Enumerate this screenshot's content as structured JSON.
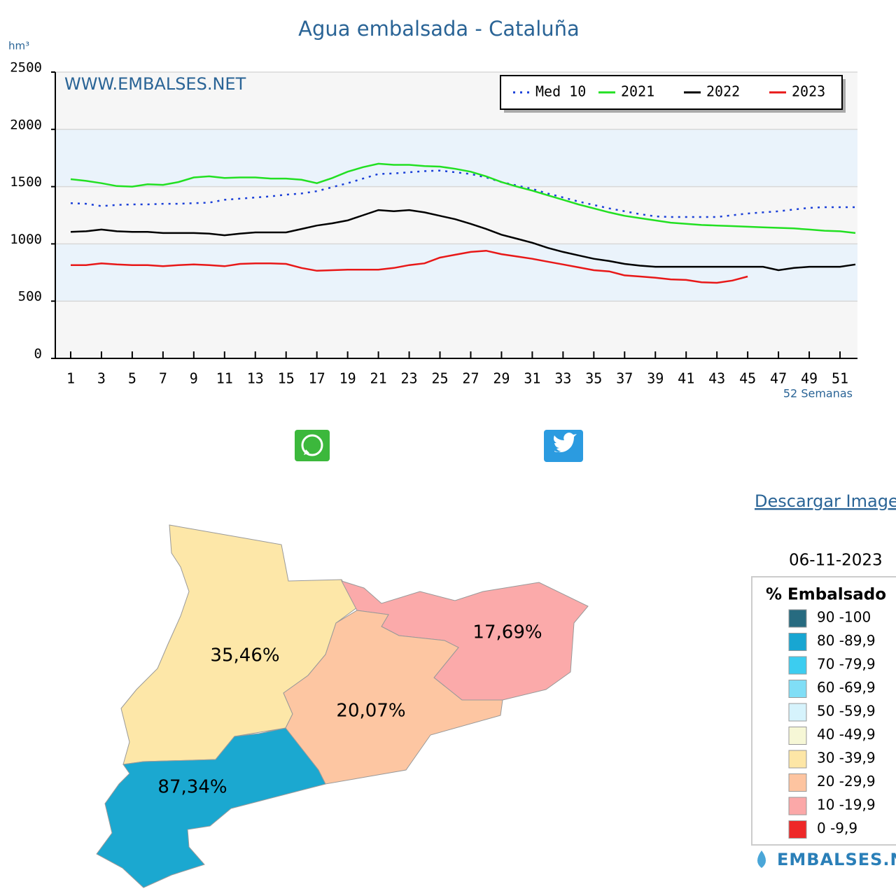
{
  "chart_data": {
    "type": "line",
    "title": "Agua embalsada - Cataluña",
    "y_label": "hm³",
    "x_label": "52 Semanas",
    "annotation": "WWW.EMBALSES.NET",
    "x": [
      1,
      2,
      3,
      4,
      5,
      6,
      7,
      8,
      9,
      10,
      11,
      12,
      13,
      14,
      15,
      16,
      17,
      18,
      19,
      20,
      21,
      22,
      23,
      24,
      25,
      26,
      27,
      28,
      29,
      30,
      31,
      32,
      33,
      34,
      35,
      36,
      37,
      38,
      39,
      40,
      41,
      42,
      43,
      44,
      45,
      46,
      47,
      48,
      49,
      50,
      51,
      52
    ],
    "xlim": [
      0,
      52
    ],
    "xticks": [
      1,
      3,
      5,
      7,
      9,
      11,
      13,
      15,
      17,
      19,
      21,
      23,
      25,
      27,
      29,
      31,
      33,
      35,
      37,
      39,
      41,
      43,
      45,
      47,
      49,
      51
    ],
    "ylim": [
      0,
      2500
    ],
    "yticks": [
      0,
      500,
      1000,
      1500,
      2000,
      2500
    ],
    "grid": true,
    "legend_position": "upper right",
    "series": [
      {
        "name": "Med 10",
        "color": "#1a3fd8",
        "dash": "dotted",
        "values": [
          1355,
          1350,
          1330,
          1340,
          1345,
          1345,
          1350,
          1350,
          1355,
          1360,
          1385,
          1395,
          1405,
          1415,
          1430,
          1440,
          1460,
          1495,
          1530,
          1570,
          1610,
          1615,
          1625,
          1635,
          1640,
          1625,
          1610,
          1580,
          1540,
          1510,
          1480,
          1440,
          1405,
          1370,
          1340,
          1310,
          1285,
          1260,
          1240,
          1235,
          1235,
          1235,
          1235,
          1250,
          1265,
          1275,
          1285,
          1300,
          1315,
          1320,
          1320,
          1320
        ]
      },
      {
        "name": "2021",
        "color": "#22e022",
        "dash": "solid",
        "values": [
          1565,
          1550,
          1530,
          1505,
          1500,
          1520,
          1515,
          1540,
          1580,
          1590,
          1575,
          1580,
          1580,
          1570,
          1570,
          1560,
          1530,
          1575,
          1630,
          1670,
          1700,
          1690,
          1690,
          1680,
          1675,
          1655,
          1630,
          1590,
          1540,
          1500,
          1465,
          1425,
          1385,
          1345,
          1310,
          1275,
          1245,
          1225,
          1205,
          1185,
          1175,
          1165,
          1160,
          1155,
          1150,
          1145,
          1140,
          1135,
          1125,
          1115,
          1110,
          1095
        ]
      },
      {
        "name": "2022",
        "color": "#000000",
        "dash": "solid",
        "values": [
          1105,
          1110,
          1125,
          1110,
          1105,
          1105,
          1095,
          1095,
          1095,
          1090,
          1075,
          1090,
          1100,
          1100,
          1100,
          1130,
          1160,
          1180,
          1205,
          1250,
          1295,
          1285,
          1295,
          1275,
          1245,
          1215,
          1175,
          1130,
          1080,
          1045,
          1010,
          965,
          930,
          900,
          870,
          850,
          825,
          810,
          800,
          800,
          800,
          800,
          800,
          800,
          800,
          800,
          770,
          790,
          800,
          800,
          800,
          820
        ]
      },
      {
        "name": "2023",
        "color": "#e81818",
        "dash": "solid",
        "values": [
          815,
          815,
          830,
          820,
          815,
          815,
          805,
          815,
          820,
          815,
          805,
          825,
          830,
          830,
          825,
          790,
          765,
          770,
          775,
          775,
          775,
          790,
          815,
          830,
          880,
          905,
          930,
          940,
          910,
          890,
          870,
          845,
          820,
          795,
          770,
          760,
          725,
          715,
          705,
          690,
          685,
          665,
          660,
          680,
          715,
          null,
          null,
          null,
          null,
          null,
          null,
          null
        ]
      }
    ]
  },
  "download_link": "Descargar Imagen",
  "map": {
    "regions": [
      {
        "label": "35,46%",
        "color": "#fde7a8"
      },
      {
        "label": "17,69%",
        "color": "#fbaaaa"
      },
      {
        "label": "20,07%",
        "color": "#fdc6a2"
      },
      {
        "label": "87,34%",
        "color": "#1ba8d0"
      }
    ]
  },
  "map_legend": {
    "date": "06-11-2023",
    "title": "% Embalsado",
    "brand": "EMBALSES.NET",
    "items": [
      {
        "label": "90 -100",
        "color": "#276b80"
      },
      {
        "label": "80 -89,9",
        "color": "#18a6d2"
      },
      {
        "label": "70 -79,9",
        "color": "#3ccdf0"
      },
      {
        "label": "60 -69,9",
        "color": "#80def6"
      },
      {
        "label": "50 -59,9",
        "color": "#d6f3fc"
      },
      {
        "label": "40 -49,9",
        "color": "#f6f7d6"
      },
      {
        "label": "30 -39,9",
        "color": "#fde6a6"
      },
      {
        "label": "20 -29,9",
        "color": "#fdc4a0"
      },
      {
        "label": "10 -19,9",
        "color": "#fba8a8"
      },
      {
        "label": "0 -9,9",
        "color": "#ee2828"
      }
    ]
  }
}
